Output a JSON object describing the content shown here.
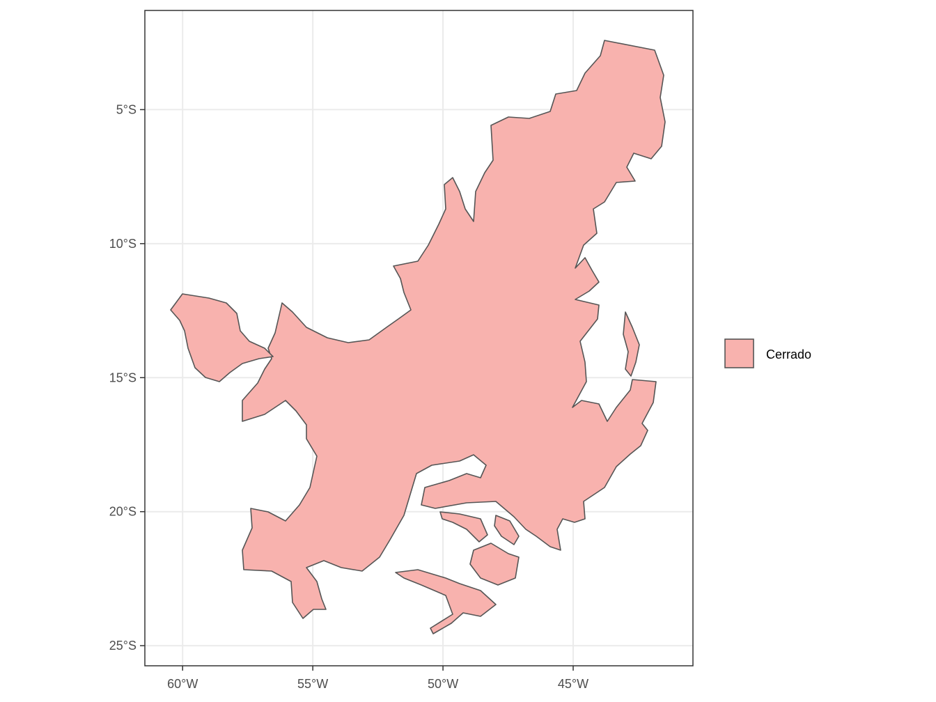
{
  "map": {
    "x_ticks": [
      "60°W",
      "55°W",
      "50°W",
      "45°W"
    ],
    "y_ticks": [
      "5°S",
      "10°S",
      "15°S",
      "20°S",
      "25°S"
    ],
    "x_tick_values": [
      -60,
      -55,
      -50,
      -45
    ],
    "y_tick_values": [
      -5,
      -10,
      -15,
      -20,
      -25
    ],
    "lon_range": [
      -61.45,
      -40.4
    ],
    "lat_range": [
      -25.75,
      -1.3
    ],
    "grid": true,
    "fill_color": "#f8b2ae",
    "outline_color": "#555555"
  },
  "legend": {
    "position": "right",
    "items": [
      {
        "label": "Cerrado",
        "color": "#f8b2ae"
      }
    ]
  }
}
